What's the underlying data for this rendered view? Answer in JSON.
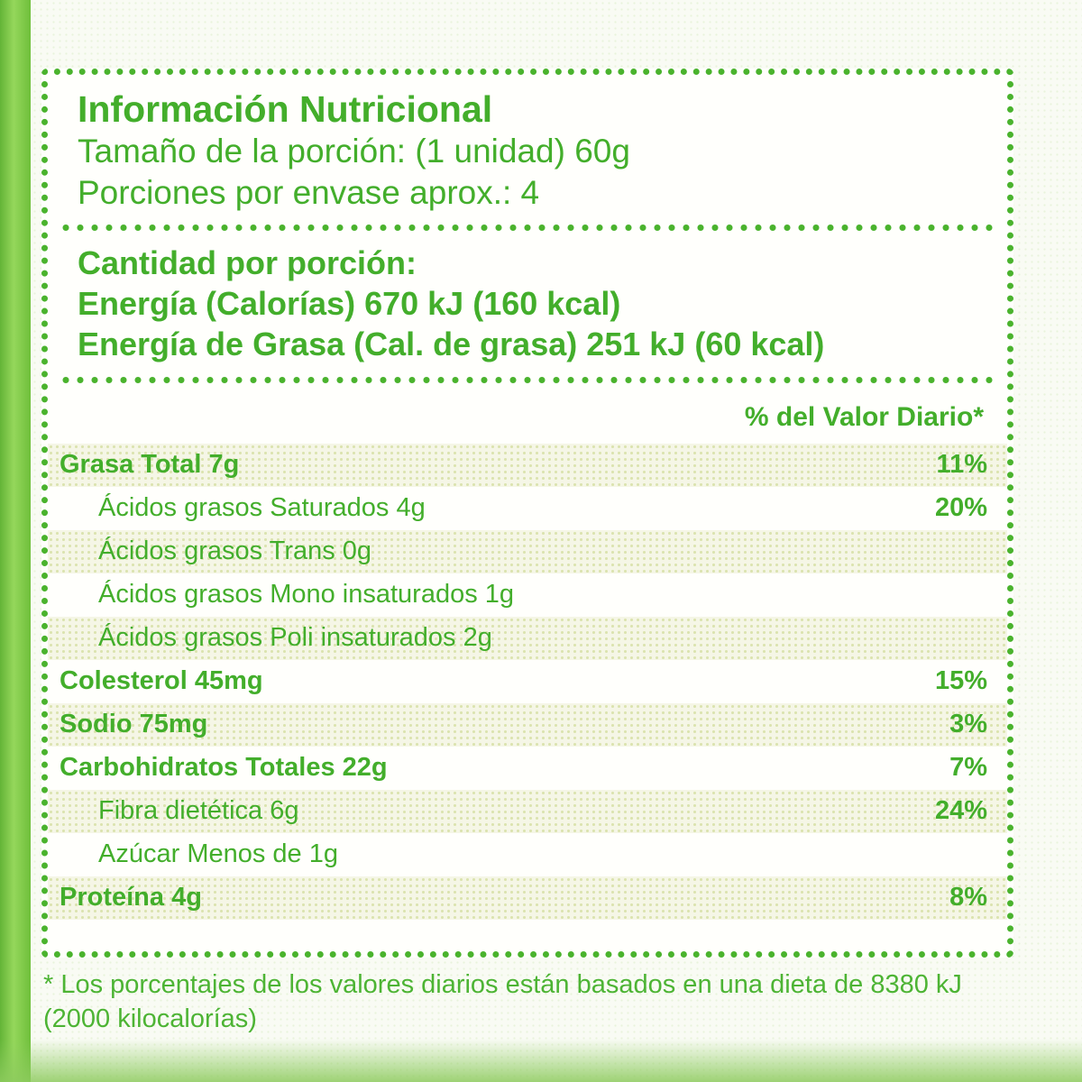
{
  "label": {
    "title": "Información Nutricional",
    "serving_size": "Tamaño de la porción: (1 unidad) 60g",
    "servings_per_container": "Porciones por envase aprox.: 4",
    "amount_per_serving": "Cantidad por porción:",
    "energy": "Energía (Calorías) 670 kJ (160 kcal)",
    "energy_from_fat": "Energía de Grasa (Cal. de grasa) 251 kJ (60 kcal)",
    "daily_value_header": "% del Valor Diario*",
    "rows": [
      {
        "name": "Grasa Total 7g",
        "dv": "11%",
        "level": "main",
        "shaded": true
      },
      {
        "name": "Ácidos grasos Saturados 4g",
        "dv": "20%",
        "level": "sub",
        "shaded": false
      },
      {
        "name": "Ácidos grasos Trans 0g",
        "dv": "",
        "level": "sub",
        "shaded": true
      },
      {
        "name": "Ácidos grasos Mono insaturados 1g",
        "dv": "",
        "level": "sub",
        "shaded": false
      },
      {
        "name": "Ácidos grasos Poli insaturados 2g",
        "dv": "",
        "level": "sub",
        "shaded": true
      },
      {
        "name": "Colesterol 45mg",
        "dv": "15%",
        "level": "main",
        "shaded": false
      },
      {
        "name": "Sodio 75mg",
        "dv": "3%",
        "level": "main",
        "shaded": true
      },
      {
        "name": "Carbohidratos Totales 22g",
        "dv": "7%",
        "level": "main",
        "shaded": false
      },
      {
        "name": "Fibra dietética 6g",
        "dv": "24%",
        "level": "sub",
        "shaded": true
      },
      {
        "name": "Azúcar Menos de 1g",
        "dv": "",
        "level": "sub",
        "shaded": false
      },
      {
        "name": "Proteína 4g",
        "dv": "8%",
        "level": "main",
        "shaded": true
      }
    ],
    "footnote_line1": "* Los porcentajes de los valores diarios están basados en una dieta de 8380 kJ",
    "footnote_line2": "(2000 kilocalorías)"
  },
  "colors": {
    "accent_green": "#43ae2b",
    "border_green": "#4ab32d",
    "shaded_row": "#f5f6e6",
    "shaded_dot": "#dbe3af"
  }
}
